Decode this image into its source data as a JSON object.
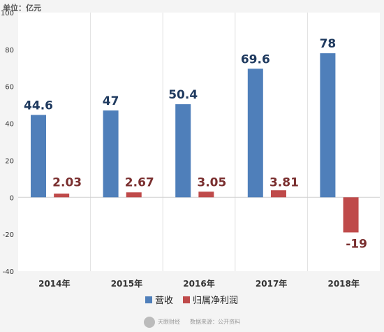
{
  "unit_label": "单位：亿元",
  "footer": {
    "brand": "天眼财经",
    "source": "数据来源：公开资料"
  },
  "colors": {
    "revenue": "#4f7fba",
    "profit": "#bf4a4a",
    "revenue_label": "#1f3a5f",
    "profit_label": "#7a2f2f"
  },
  "chart_data": {
    "type": "bar",
    "categories": [
      "2014年",
      "2015年",
      "2016年",
      "2017年",
      "2018年"
    ],
    "series": [
      {
        "name": "营收",
        "values": [
          44.6,
          47,
          50.4,
          69.6,
          78
        ],
        "labels": [
          "44.6",
          "47",
          "50.4",
          "69.6",
          "78"
        ]
      },
      {
        "name": "归属净利润",
        "values": [
          2.03,
          2.67,
          3.05,
          3.81,
          -19
        ],
        "labels": [
          "2.03",
          "2.67",
          "3.05",
          "3.81",
          "-19"
        ]
      }
    ],
    "ylim": [
      -40,
      100
    ],
    "yticks": [
      -40,
      -20,
      0,
      20,
      40,
      60,
      80,
      100
    ],
    "legend_position": "bottom-center",
    "grid": true
  }
}
